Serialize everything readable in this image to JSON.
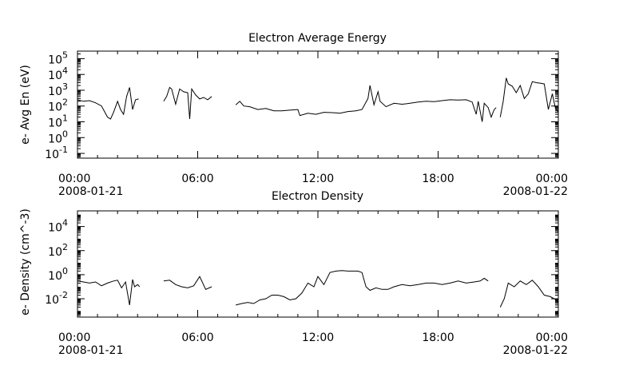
{
  "chart_data": [
    {
      "type": "line",
      "title": "Electron Average Energy",
      "ylabel": "e- Avg En (eV)",
      "yscale": "log",
      "ylim": [
        0.05,
        300000
      ],
      "xlim_hours": [
        0,
        24
      ],
      "y_ticks": [
        {
          "value": 0.1,
          "base": "10",
          "exp": "-1"
        },
        {
          "value": 1,
          "base": "10",
          "exp": "0"
        },
        {
          "value": 10,
          "base": "10",
          "exp": "1"
        },
        {
          "value": 100,
          "base": "10",
          "exp": "2"
        },
        {
          "value": 1000,
          "base": "10",
          "exp": "3"
        },
        {
          "value": 10000,
          "base": "10",
          "exp": "4"
        },
        {
          "value": 100000,
          "base": "10",
          "exp": "5"
        }
      ],
      "x_ticks": [
        {
          "hour": 0,
          "label": "00:00",
          "date": "2008-01-21"
        },
        {
          "hour": 6,
          "label": "06:00",
          "date": ""
        },
        {
          "hour": 12,
          "label": "12:00",
          "date": ""
        },
        {
          "hour": 18,
          "label": "18:00",
          "date": ""
        },
        {
          "hour": 24,
          "label": "00:00",
          "date": "2008-01-22"
        }
      ],
      "grid": false,
      "legend": "none",
      "series_color": "#000000",
      "segments": [
        {
          "x": [
            0.0,
            0.3,
            0.6,
            0.9,
            1.2,
            1.5,
            1.65,
            1.8,
            2.0,
            2.15,
            2.3,
            2.45,
            2.6,
            2.75,
            2.9,
            3.05
          ],
          "y": [
            250,
            200,
            220,
            160,
            100,
            20,
            15,
            40,
            200,
            60,
            30,
            400,
            1500,
            60,
            250,
            280
          ]
        },
        {
          "x": [
            4.3,
            4.45,
            4.6,
            4.7,
            4.9,
            5.1,
            5.3,
            5.5,
            5.6,
            5.7,
            5.9,
            6.1,
            6.3,
            6.5,
            6.7
          ],
          "y": [
            200,
            400,
            1500,
            1200,
            130,
            1200,
            800,
            700,
            15,
            1200,
            500,
            280,
            350,
            250,
            400
          ]
        },
        {
          "x": [
            7.9,
            8.1,
            8.3,
            8.6,
            9.0,
            9.4,
            9.8,
            10.2,
            10.6,
            11.0,
            11.1,
            11.5,
            11.9,
            12.3,
            12.7,
            13.1,
            13.5,
            13.9,
            14.2,
            14.5,
            14.6,
            14.8,
            15.0,
            15.1,
            15.4,
            15.8,
            16.2,
            16.6,
            17.0,
            17.4,
            17.8,
            18.2,
            18.6,
            19.0,
            19.4,
            19.7,
            19.9,
            20.0,
            20.2,
            20.3,
            20.5,
            20.65,
            20.8,
            20.9
          ],
          "y": [
            120,
            200,
            100,
            90,
            60,
            70,
            50,
            50,
            55,
            60,
            25,
            35,
            30,
            40,
            38,
            35,
            45,
            50,
            60,
            300,
            2000,
            120,
            800,
            200,
            90,
            150,
            130,
            150,
            180,
            200,
            190,
            220,
            250,
            240,
            250,
            180,
            30,
            200,
            10,
            150,
            80,
            20,
            60,
            80
          ]
        },
        {
          "x": [
            21.1,
            21.25,
            21.4,
            21.5,
            21.7,
            21.9,
            22.1,
            22.3,
            22.5,
            22.7,
            22.9,
            23.1,
            23.3,
            23.5,
            23.7,
            23.85,
            24.0
          ],
          "y": [
            20,
            200,
            6000,
            2500,
            1800,
            700,
            2000,
            300,
            600,
            3500,
            3000,
            2800,
            2500,
            60,
            600,
            80,
            40
          ]
        }
      ]
    },
    {
      "type": "line",
      "title": "Electron Density",
      "ylabel": "e- Density (cm^-3)",
      "yscale": "log",
      "ylim": [
        0.0003,
        200000
      ],
      "xlim_hours": [
        0,
        24
      ],
      "y_ticks": [
        {
          "value": 0.01,
          "base": "10",
          "exp": "-2"
        },
        {
          "value": 1,
          "base": "10",
          "exp": "0"
        },
        {
          "value": 100,
          "base": "10",
          "exp": "2"
        },
        {
          "value": 10000,
          "base": "10",
          "exp": "4"
        }
      ],
      "x_ticks": [
        {
          "hour": 0,
          "label": "00:00",
          "date": "2008-01-21"
        },
        {
          "hour": 6,
          "label": "06:00",
          "date": ""
        },
        {
          "hour": 12,
          "label": "12:00",
          "date": ""
        },
        {
          "hour": 18,
          "label": "18:00",
          "date": ""
        },
        {
          "hour": 24,
          "label": "00:00",
          "date": "2008-01-22"
        }
      ],
      "grid": false,
      "legend": "none",
      "series_color": "#000000",
      "segments": [
        {
          "x": [
            0.0,
            0.3,
            0.6,
            0.9,
            1.2,
            1.5,
            1.8,
            2.0,
            2.2,
            2.4,
            2.6,
            2.75,
            2.85,
            3.0,
            3.1
          ],
          "y": [
            0.3,
            0.25,
            0.2,
            0.25,
            0.12,
            0.2,
            0.3,
            0.35,
            0.08,
            0.25,
            0.003,
            0.4,
            0.1,
            0.15,
            0.1
          ]
        },
        {
          "x": [
            4.3,
            4.6,
            4.9,
            5.2,
            5.5,
            5.8,
            6.1,
            6.4,
            6.7
          ],
          "y": [
            0.3,
            0.35,
            0.15,
            0.1,
            0.08,
            0.12,
            0.7,
            0.06,
            0.1
          ]
        },
        {
          "x": [
            7.9,
            8.2,
            8.5,
            8.8,
            9.1,
            9.4,
            9.7,
            10.0,
            10.3,
            10.6,
            10.9,
            11.2,
            11.5,
            11.8,
            12.0,
            12.3,
            12.6,
            12.9,
            13.2,
            13.5,
            13.8,
            14.0,
            14.2,
            14.4,
            14.6,
            14.9,
            15.2,
            15.5,
            15.8,
            16.2,
            16.6,
            17.0,
            17.4,
            17.8,
            18.2,
            18.6,
            19.0,
            19.4,
            19.8,
            20.1,
            20.3,
            20.5
          ],
          "y": [
            0.003,
            0.004,
            0.005,
            0.004,
            0.008,
            0.01,
            0.02,
            0.02,
            0.015,
            0.008,
            0.01,
            0.03,
            0.2,
            0.1,
            0.7,
            0.15,
            1.5,
            2.0,
            2.2,
            2.0,
            2.0,
            2.0,
            1.5,
            0.1,
            0.05,
            0.08,
            0.06,
            0.06,
            0.1,
            0.15,
            0.12,
            0.15,
            0.2,
            0.2,
            0.15,
            0.2,
            0.3,
            0.2,
            0.25,
            0.3,
            0.5,
            0.3
          ]
        },
        {
          "x": [
            21.1,
            21.3,
            21.5,
            21.8,
            22.1,
            22.4,
            22.7,
            23.0,
            23.3,
            23.6,
            23.9,
            24.0
          ],
          "y": [
            0.002,
            0.01,
            0.2,
            0.1,
            0.3,
            0.15,
            0.35,
            0.1,
            0.02,
            0.015,
            0.008,
            0.005
          ]
        }
      ]
    }
  ]
}
